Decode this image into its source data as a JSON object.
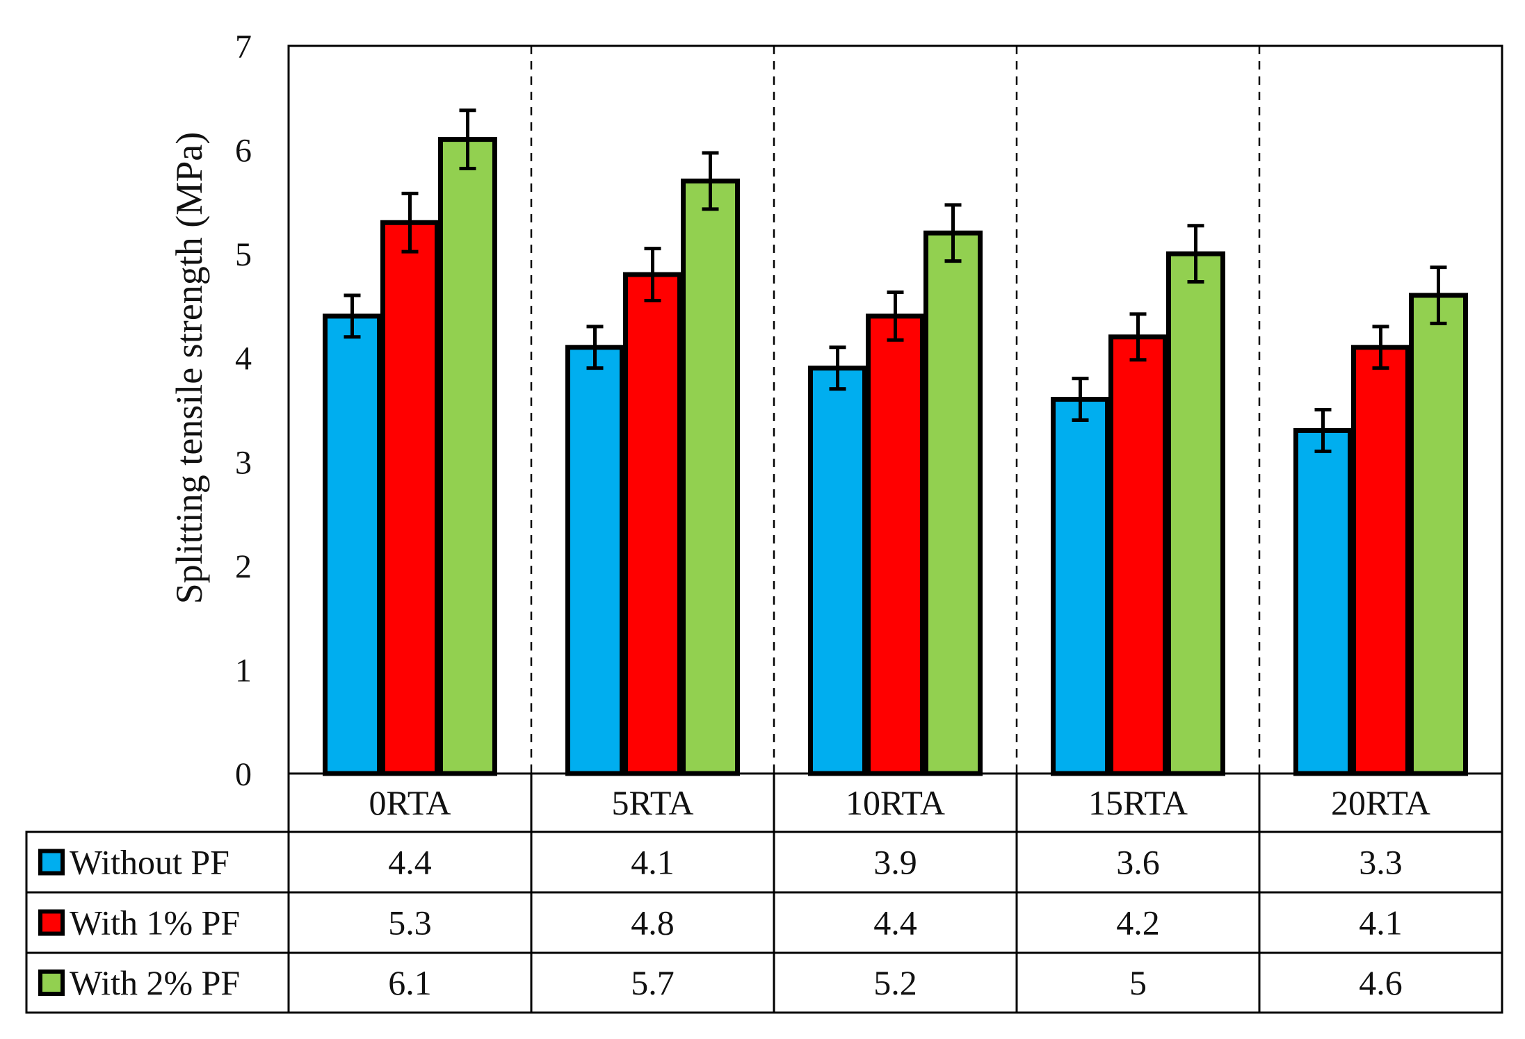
{
  "chart_data": {
    "type": "bar",
    "title": "",
    "xlabel": "",
    "ylabel": "Splitting tensile strength (MPa)",
    "ylim": [
      0,
      7
    ],
    "yticks": [
      0,
      1,
      2,
      3,
      4,
      5,
      6,
      7
    ],
    "categories": [
      "0RTA",
      "5RTA",
      "10RTA",
      "15RTA",
      "20RTA"
    ],
    "series": [
      {
        "name": "Without PF",
        "color": "#00AEEF",
        "values": [
          4.4,
          4.1,
          3.9,
          3.6,
          3.3
        ],
        "labels": [
          "4.4",
          "4.1",
          "3.9",
          "3.6",
          "3.3"
        ],
        "error": [
          0.2,
          0.2,
          0.2,
          0.2,
          0.2
        ]
      },
      {
        "name": "With 1% PF",
        "color": "#FF0000",
        "values": [
          5.3,
          4.8,
          4.4,
          4.2,
          4.1
        ],
        "labels": [
          "5.3",
          "4.8",
          "4.4",
          "4.2",
          "4.1"
        ],
        "error": [
          0.28,
          0.25,
          0.23,
          0.22,
          0.2
        ]
      },
      {
        "name": "With 2% PF",
        "color": "#92D050",
        "values": [
          6.1,
          5.7,
          5.2,
          5.0,
          4.6
        ],
        "labels": [
          "6.1",
          "5.7",
          "5.2",
          "5",
          "4.6"
        ],
        "error": [
          0.28,
          0.27,
          0.27,
          0.27,
          0.27
        ]
      }
    ],
    "grid": false,
    "category_separators": "dashed",
    "data_table": true
  }
}
